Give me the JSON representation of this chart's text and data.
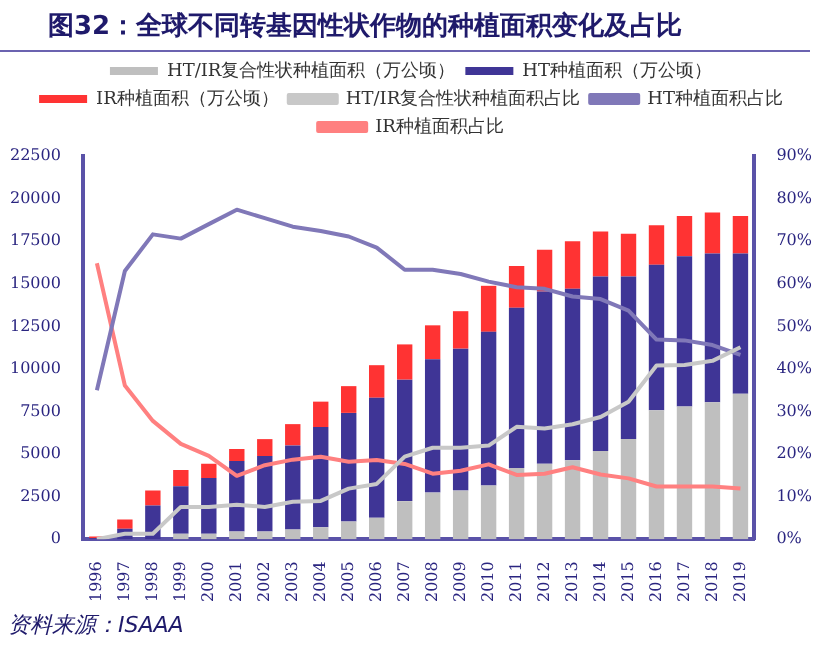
{
  "chart_data": {
    "type": "bar",
    "title": "图32：全球不同转基因性状作物的种植面积变化及占比",
    "annotations": [
      "资料来源：ISAAA"
    ],
    "categories": [
      "1996",
      "1997",
      "1998",
      "1999",
      "2000",
      "2001",
      "2002",
      "2003",
      "2004",
      "2005",
      "2006",
      "2007",
      "2008",
      "2009",
      "2010",
      "2011",
      "2012",
      "2013",
      "2014",
      "2015",
      "2016",
      "2017",
      "2018",
      "2019"
    ],
    "stacked": true,
    "legend": "top",
    "grid": false,
    "ylim": [
      0,
      22500
    ],
    "yticks": [
      0,
      2500,
      5000,
      7500,
      10000,
      12500,
      15000,
      17500,
      20000,
      22500
    ],
    "y2lim": [
      0,
      90
    ],
    "y2ticks": [
      {
        "value": 0,
        "label": "0%"
      },
      {
        "value": 10,
        "label": "10%"
      },
      {
        "value": 20,
        "label": "20%"
      },
      {
        "value": 30,
        "label": "30%"
      },
      {
        "value": 40,
        "label": "40%"
      },
      {
        "value": 50,
        "label": "50%"
      },
      {
        "value": 60,
        "label": "60%"
      },
      {
        "value": 70,
        "label": "70%"
      },
      {
        "value": 80,
        "label": "80%"
      },
      {
        "value": 90,
        "label": "90%"
      }
    ],
    "series": [
      {
        "name": "HT/IR复合性状种植面积（万公顷）",
        "color": "#bfbfbf",
        "values": [
          0,
          0,
          0,
          330,
          330,
          460,
          460,
          580,
          700,
          1040,
          1260,
          2240,
          2740,
          2860,
          3150,
          4190,
          4430,
          4640,
          5180,
          5880,
          7580,
          7790,
          8040,
          8540
        ]
      },
      {
        "name": "HT种植面积（万公顷）",
        "color": "#3f3596",
        "values": [
          60,
          620,
          1990,
          2780,
          3270,
          4140,
          4430,
          4930,
          5890,
          6380,
          7050,
          7130,
          7830,
          8330,
          9030,
          9400,
          10120,
          10070,
          10240,
          9540,
          8540,
          8830,
          8740,
          8240
        ]
      },
      {
        "name": "IR种植面积（万公顷）",
        "color": "#ff3333",
        "values": [
          110,
          540,
          870,
          950,
          830,
          700,
          990,
          1250,
          1490,
          1570,
          1910,
          2070,
          1990,
          2200,
          2700,
          2450,
          2440,
          2780,
          2650,
          2520,
          2320,
          2360,
          2410,
          2200
        ]
      },
      {
        "name": "HT/IR复合性状种植面积占比",
        "type": "line",
        "axis": "y2",
        "color": "#c8c8c8",
        "values": [
          0,
          1.3,
          1.3,
          7.6,
          7.6,
          8.1,
          7.6,
          8.8,
          9.0,
          11.9,
          13,
          19.4,
          21.5,
          21.5,
          22,
          26.4,
          26,
          27,
          28.7,
          32.3,
          40.8,
          40.9,
          41.9,
          45.1
        ]
      },
      {
        "name": "HT种植面积占比",
        "type": "line",
        "axis": "y2",
        "color": "#8078b8",
        "values": [
          35,
          63,
          71.6,
          70.6,
          74,
          77.4,
          75.4,
          73.4,
          72.4,
          71.1,
          68.5,
          63.3,
          63.3,
          62.3,
          60.5,
          59.2,
          58.8,
          57,
          56.4,
          53.7,
          46.9,
          46.7,
          45.6,
          43.3
        ]
      },
      {
        "name": "IR种植面积占比",
        "type": "line",
        "axis": "y2",
        "color": "#ff8080",
        "values": [
          64.8,
          36.1,
          27.8,
          22.4,
          19.6,
          14.9,
          17.4,
          18.7,
          19.4,
          18.2,
          18.6,
          17.7,
          15.4,
          16.1,
          17.6,
          15.1,
          15.4,
          16.9,
          15.2,
          14.3,
          12.4,
          12.4,
          12.4,
          11.9
        ]
      }
    ]
  }
}
